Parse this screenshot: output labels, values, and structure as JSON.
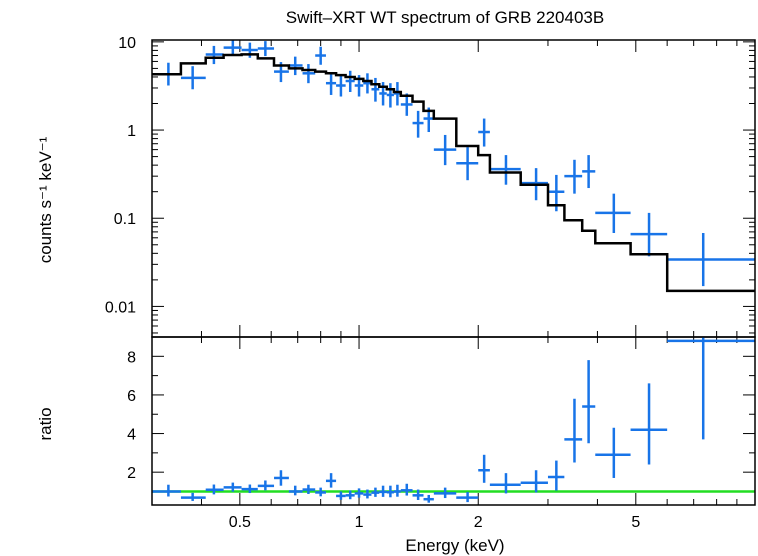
{
  "chart_data": [
    {
      "type": "scatter",
      "title": "Swift–XRT WT spectrum of GRB 220403B",
      "ylabel": "counts s⁻¹ keV⁻¹",
      "xlabel": "",
      "xscale": "log",
      "yscale": "log",
      "xlim": [
        0.3,
        10
      ],
      "ylim": [
        0.0045,
        10.5
      ],
      "xticks": [
        {
          "v": 0.5,
          "label": "0.5"
        },
        {
          "v": 1,
          "label": "1"
        },
        {
          "v": 2,
          "label": "2"
        },
        {
          "v": 5,
          "label": "5"
        }
      ],
      "yticks": [
        {
          "v": 10,
          "label": "10"
        },
        {
          "v": 1,
          "label": "1"
        },
        {
          "v": 0.1,
          "label": "0.1"
        },
        {
          "v": 0.01,
          "label": "0.01"
        }
      ],
      "series": [
        {
          "kind": "errorbars",
          "color": "#1874e8",
          "points": [
            {
              "x": 0.33,
              "xlo": 0.3,
              "xhi": 0.355,
              "y": 4.3,
              "ylo": 3.2,
              "yhi": 5.8
            },
            {
              "x": 0.38,
              "xlo": 0.355,
              "xhi": 0.41,
              "y": 3.9,
              "ylo": 2.9,
              "yhi": 5.3
            },
            {
              "x": 0.43,
              "xlo": 0.41,
              "xhi": 0.455,
              "y": 7.2,
              "ylo": 5.6,
              "yhi": 9.0
            },
            {
              "x": 0.48,
              "xlo": 0.455,
              "xhi": 0.505,
              "y": 8.6,
              "ylo": 7.0,
              "yhi": 10.4
            },
            {
              "x": 0.53,
              "xlo": 0.505,
              "xhi": 0.555,
              "y": 8.1,
              "ylo": 6.6,
              "yhi": 9.8
            },
            {
              "x": 0.58,
              "xlo": 0.555,
              "xhi": 0.61,
              "y": 8.4,
              "ylo": 6.9,
              "yhi": 10.2
            },
            {
              "x": 0.635,
              "xlo": 0.61,
              "xhi": 0.665,
              "y": 4.6,
              "ylo": 3.5,
              "yhi": 5.9
            },
            {
              "x": 0.69,
              "xlo": 0.665,
              "xhi": 0.72,
              "y": 5.4,
              "ylo": 4.2,
              "yhi": 6.8
            },
            {
              "x": 0.745,
              "xlo": 0.72,
              "xhi": 0.775,
              "y": 4.4,
              "ylo": 3.4,
              "yhi": 5.6
            },
            {
              "x": 0.8,
              "xlo": 0.775,
              "xhi": 0.825,
              "y": 7.0,
              "ylo": 5.5,
              "yhi": 8.8
            },
            {
              "x": 0.85,
              "xlo": 0.825,
              "xhi": 0.875,
              "y": 3.4,
              "ylo": 2.5,
              "yhi": 4.5
            },
            {
              "x": 0.9,
              "xlo": 0.875,
              "xhi": 0.925,
              "y": 3.2,
              "ylo": 2.4,
              "yhi": 4.3
            },
            {
              "x": 0.95,
              "xlo": 0.925,
              "xhi": 0.975,
              "y": 3.6,
              "ylo": 2.7,
              "yhi": 4.7
            },
            {
              "x": 1.0,
              "xlo": 0.975,
              "xhi": 1.025,
              "y": 3.2,
              "ylo": 2.4,
              "yhi": 4.2
            },
            {
              "x": 1.05,
              "xlo": 1.025,
              "xhi": 1.075,
              "y": 3.4,
              "ylo": 2.6,
              "yhi": 4.4
            },
            {
              "x": 1.1,
              "xlo": 1.075,
              "xhi": 1.125,
              "y": 2.9,
              "ylo": 2.1,
              "yhi": 3.9
            },
            {
              "x": 1.15,
              "xlo": 1.125,
              "xhi": 1.175,
              "y": 2.6,
              "ylo": 1.9,
              "yhi": 3.5
            },
            {
              "x": 1.2,
              "xlo": 1.175,
              "xhi": 1.225,
              "y": 2.5,
              "ylo": 1.8,
              "yhi": 3.4
            },
            {
              "x": 1.25,
              "xlo": 1.225,
              "xhi": 1.275,
              "y": 2.6,
              "ylo": 1.9,
              "yhi": 3.5
            },
            {
              "x": 1.32,
              "xlo": 1.275,
              "xhi": 1.365,
              "y": 1.95,
              "ylo": 1.45,
              "yhi": 2.6
            },
            {
              "x": 1.41,
              "xlo": 1.365,
              "xhi": 1.455,
              "y": 1.2,
              "ylo": 0.82,
              "yhi": 1.65
            },
            {
              "x": 1.5,
              "xlo": 1.455,
              "xhi": 1.545,
              "y": 1.35,
              "ylo": 0.95,
              "yhi": 1.8
            },
            {
              "x": 1.65,
              "xlo": 1.545,
              "xhi": 1.76,
              "y": 0.6,
              "ylo": 0.4,
              "yhi": 0.88
            },
            {
              "x": 1.88,
              "xlo": 1.76,
              "xhi": 2.0,
              "y": 0.42,
              "ylo": 0.27,
              "yhi": 0.64
            },
            {
              "x": 2.07,
              "xlo": 2.0,
              "xhi": 2.14,
              "y": 0.95,
              "ylo": 0.65,
              "yhi": 1.35
            },
            {
              "x": 2.35,
              "xlo": 2.14,
              "xhi": 2.56,
              "y": 0.36,
              "ylo": 0.24,
              "yhi": 0.52
            },
            {
              "x": 2.8,
              "xlo": 2.56,
              "xhi": 3.0,
              "y": 0.25,
              "ylo": 0.16,
              "yhi": 0.37
            },
            {
              "x": 3.15,
              "xlo": 3.0,
              "xhi": 3.3,
              "y": 0.2,
              "ylo": 0.12,
              "yhi": 0.31
            },
            {
              "x": 3.5,
              "xlo": 3.3,
              "xhi": 3.66,
              "y": 0.3,
              "ylo": 0.19,
              "yhi": 0.46
            },
            {
              "x": 3.8,
              "xlo": 3.66,
              "xhi": 3.95,
              "y": 0.34,
              "ylo": 0.22,
              "yhi": 0.52
            },
            {
              "x": 4.4,
              "xlo": 3.95,
              "xhi": 4.85,
              "y": 0.115,
              "ylo": 0.068,
              "yhi": 0.19
            },
            {
              "x": 5.4,
              "xlo": 4.85,
              "xhi": 6.0,
              "y": 0.066,
              "ylo": 0.037,
              "yhi": 0.115
            },
            {
              "x": 7.4,
              "xlo": 6.0,
              "xhi": 10.0,
              "y": 0.034,
              "ylo": 0.017,
              "yhi": 0.068
            }
          ]
        },
        {
          "kind": "step",
          "color": "#000000",
          "edges": [
            0.3,
            0.355,
            0.41,
            0.455,
            0.505,
            0.555,
            0.61,
            0.665,
            0.72,
            0.775,
            0.825,
            0.875,
            0.925,
            0.975,
            1.025,
            1.075,
            1.125,
            1.175,
            1.225,
            1.275,
            1.365,
            1.455,
            1.545,
            1.76,
            2.0,
            2.14,
            2.56,
            3.0,
            3.3,
            3.66,
            3.95,
            4.85,
            6.0,
            10.0
          ],
          "values": [
            4.3,
            5.7,
            6.6,
            7.1,
            7.2,
            6.5,
            5.4,
            5.0,
            4.8,
            4.6,
            4.4,
            4.2,
            4.0,
            3.8,
            3.6,
            3.3,
            3.1,
            2.9,
            2.7,
            2.45,
            2.1,
            1.65,
            1.35,
            0.66,
            0.52,
            0.33,
            0.24,
            0.14,
            0.095,
            0.072,
            0.052,
            0.039,
            0.015
          ]
        }
      ]
    },
    {
      "type": "scatter",
      "title": "",
      "xlabel": "Energy (keV)",
      "ylabel": "ratio",
      "xscale": "log",
      "xlim": [
        0.3,
        10
      ],
      "ylim": [
        0.3,
        9.0
      ],
      "xticks": [
        {
          "v": 0.5,
          "label": "0.5"
        },
        {
          "v": 1,
          "label": "1"
        },
        {
          "v": 2,
          "label": "2"
        },
        {
          "v": 5,
          "label": "5"
        }
      ],
      "yticks": [
        {
          "v": 2,
          "label": "2"
        },
        {
          "v": 4,
          "label": "4"
        },
        {
          "v": 6,
          "label": "6"
        },
        {
          "v": 8,
          "label": "8"
        }
      ],
      "reference_line": {
        "y": 1,
        "color": "#22dd22"
      },
      "series": [
        {
          "kind": "errorbars",
          "color": "#1874e8",
          "points": [
            {
              "x": 0.33,
              "xlo": 0.3,
              "xhi": 0.355,
              "y": 1.0,
              "ylo": 0.74,
              "yhi": 1.35
            },
            {
              "x": 0.38,
              "xlo": 0.355,
              "xhi": 0.41,
              "y": 0.68,
              "ylo": 0.51,
              "yhi": 0.93
            },
            {
              "x": 0.43,
              "xlo": 0.41,
              "xhi": 0.455,
              "y": 1.09,
              "ylo": 0.85,
              "yhi": 1.36
            },
            {
              "x": 0.48,
              "xlo": 0.455,
              "xhi": 0.505,
              "y": 1.21,
              "ylo": 0.99,
              "yhi": 1.46
            },
            {
              "x": 0.53,
              "xlo": 0.505,
              "xhi": 0.555,
              "y": 1.12,
              "ylo": 0.92,
              "yhi": 1.36
            },
            {
              "x": 0.58,
              "xlo": 0.555,
              "xhi": 0.61,
              "y": 1.29,
              "ylo": 1.06,
              "yhi": 1.57
            },
            {
              "x": 0.635,
              "xlo": 0.61,
              "xhi": 0.665,
              "y": 1.7,
              "ylo": 1.3,
              "yhi": 2.1
            },
            {
              "x": 0.69,
              "xlo": 0.665,
              "xhi": 0.72,
              "y": 1.0,
              "ylo": 0.8,
              "yhi": 1.3
            },
            {
              "x": 0.745,
              "xlo": 0.72,
              "xhi": 0.775,
              "y": 1.1,
              "ylo": 0.87,
              "yhi": 1.35
            },
            {
              "x": 0.8,
              "xlo": 0.775,
              "xhi": 0.825,
              "y": 0.95,
              "ylo": 0.75,
              "yhi": 1.2
            },
            {
              "x": 0.85,
              "xlo": 0.825,
              "xhi": 0.875,
              "y": 1.55,
              "ylo": 1.2,
              "yhi": 1.95
            },
            {
              "x": 0.9,
              "xlo": 0.875,
              "xhi": 0.925,
              "y": 0.77,
              "ylo": 0.57,
              "yhi": 1.0
            },
            {
              "x": 0.95,
              "xlo": 0.925,
              "xhi": 0.975,
              "y": 0.8,
              "ylo": 0.6,
              "yhi": 1.05
            },
            {
              "x": 1.0,
              "xlo": 0.975,
              "xhi": 1.025,
              "y": 0.9,
              "ylo": 0.68,
              "yhi": 1.16
            },
            {
              "x": 1.05,
              "xlo": 1.025,
              "xhi": 1.075,
              "y": 0.84,
              "ylo": 0.64,
              "yhi": 1.1
            },
            {
              "x": 1.1,
              "xlo": 1.075,
              "xhi": 1.125,
              "y": 0.94,
              "ylo": 0.72,
              "yhi": 1.2
            },
            {
              "x": 1.15,
              "xlo": 1.125,
              "xhi": 1.175,
              "y": 0.98,
              "ylo": 0.72,
              "yhi": 1.3
            },
            {
              "x": 1.2,
              "xlo": 1.175,
              "xhi": 1.225,
              "y": 0.96,
              "ylo": 0.7,
              "yhi": 1.3
            },
            {
              "x": 1.25,
              "xlo": 1.225,
              "xhi": 1.275,
              "y": 1.0,
              "ylo": 0.73,
              "yhi": 1.35
            },
            {
              "x": 1.32,
              "xlo": 1.275,
              "xhi": 1.365,
              "y": 1.06,
              "ylo": 0.79,
              "yhi": 1.4
            },
            {
              "x": 1.41,
              "xlo": 1.365,
              "xhi": 1.455,
              "y": 0.8,
              "ylo": 0.56,
              "yhi": 1.1
            },
            {
              "x": 1.5,
              "xlo": 1.455,
              "xhi": 1.545,
              "y": 0.6,
              "ylo": 0.42,
              "yhi": 0.82
            },
            {
              "x": 1.65,
              "xlo": 1.545,
              "xhi": 1.76,
              "y": 0.9,
              "ylo": 0.66,
              "yhi": 1.2
            },
            {
              "x": 1.88,
              "xlo": 1.76,
              "xhi": 2.0,
              "y": 0.68,
              "ylo": 0.45,
              "yhi": 0.97
            },
            {
              "x": 2.07,
              "xlo": 2.0,
              "xhi": 2.14,
              "y": 2.1,
              "ylo": 1.45,
              "yhi": 2.9
            },
            {
              "x": 2.35,
              "xlo": 2.14,
              "xhi": 2.56,
              "y": 1.35,
              "ylo": 0.9,
              "yhi": 1.95
            },
            {
              "x": 2.8,
              "xlo": 2.56,
              "xhi": 3.0,
              "y": 1.45,
              "ylo": 0.95,
              "yhi": 2.1
            },
            {
              "x": 3.15,
              "xlo": 3.0,
              "xhi": 3.3,
              "y": 1.75,
              "ylo": 1.05,
              "yhi": 2.6
            },
            {
              "x": 3.5,
              "xlo": 3.3,
              "xhi": 3.66,
              "y": 3.7,
              "ylo": 2.5,
              "yhi": 5.8
            },
            {
              "x": 3.8,
              "xlo": 3.66,
              "xhi": 3.95,
              "y": 5.4,
              "ylo": 3.5,
              "yhi": 7.8
            },
            {
              "x": 4.4,
              "xlo": 3.95,
              "xhi": 4.85,
              "y": 2.9,
              "ylo": 1.7,
              "yhi": 4.3
            },
            {
              "x": 5.4,
              "xlo": 4.85,
              "xhi": 6.0,
              "y": 4.2,
              "ylo": 2.4,
              "yhi": 6.6
            },
            {
              "x": 7.4,
              "xlo": 6.0,
              "xhi": 10.0,
              "y": 8.8,
              "ylo": 3.7,
              "yhi": 9.0
            }
          ]
        }
      ]
    }
  ]
}
